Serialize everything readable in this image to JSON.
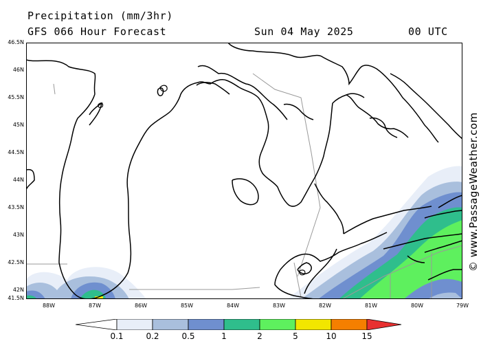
{
  "header": {
    "title": "Precipitation (mm/3hr)",
    "model": "GFS 066 Hour Forecast",
    "date": "Sun 04 May 2025",
    "time": "00 UTC"
  },
  "watermark": "© www.PassageWeather.com",
  "latitudes": [
    "46.5N",
    "46N",
    "45.5N",
    "45N",
    "44.5N",
    "44N",
    "43.5N",
    "43N",
    "42.5N",
    "42N",
    "41.5N"
  ],
  "longitudes": [
    "88W",
    "87W",
    "86W",
    "85W",
    "84W",
    "83W",
    "82W",
    "81W",
    "80W",
    "79W"
  ],
  "legend": {
    "labels": [
      "0.1",
      "0.2",
      "0.5",
      "1",
      "2",
      "5",
      "10",
      "15"
    ],
    "colors": [
      "#e8eef8",
      "#a9bfdd",
      "#6f8fcf",
      "#2fbe8c",
      "#5ef05e",
      "#f2e600",
      "#f57f00",
      "#e83030"
    ]
  },
  "colors": {
    "coast": "#000000",
    "border": "#999999",
    "frame": "#000000"
  }
}
